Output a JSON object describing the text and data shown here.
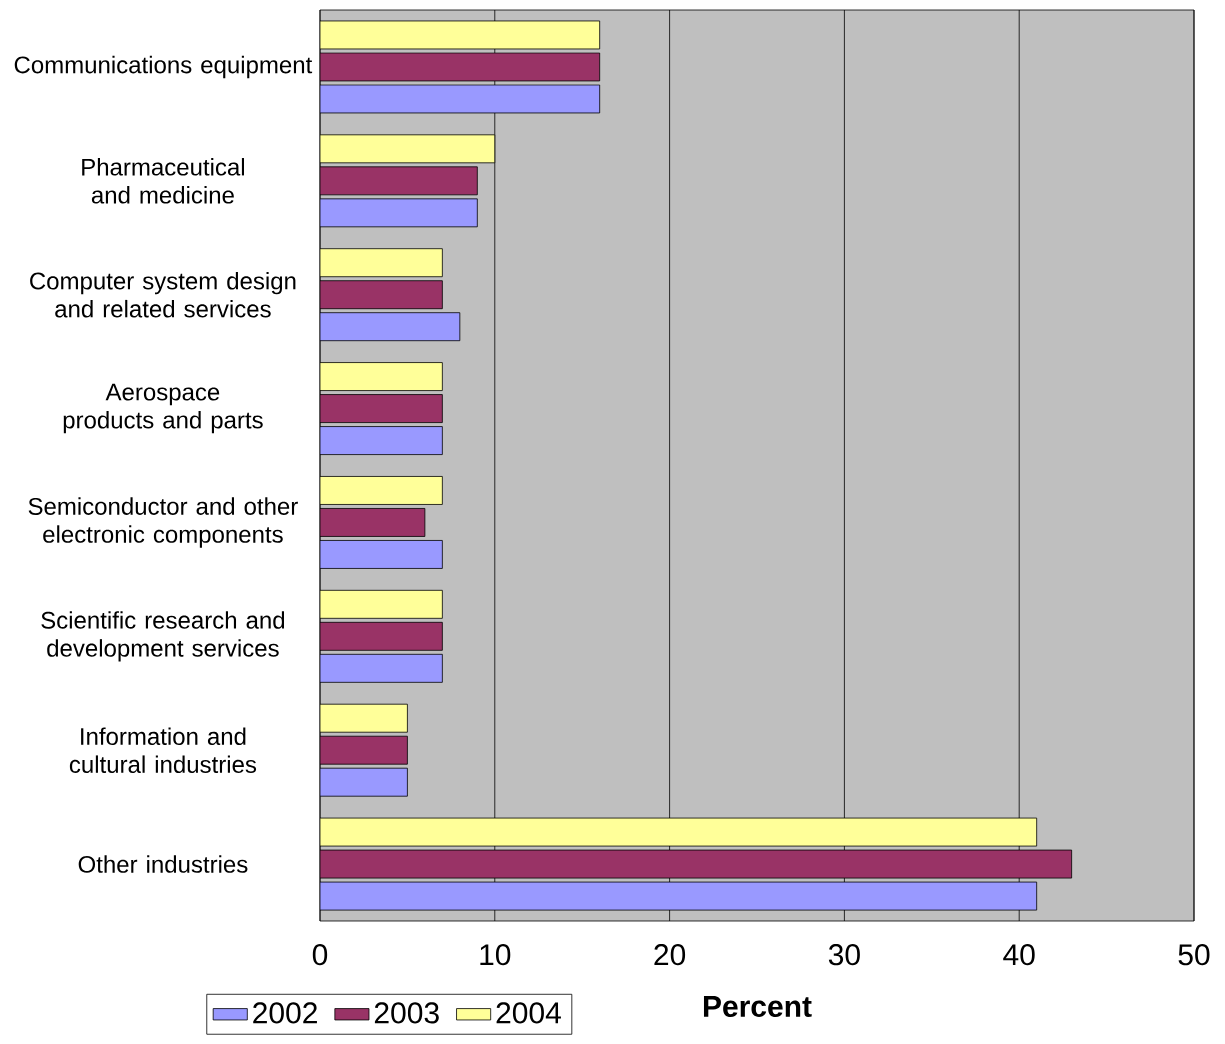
{
  "chart_data": {
    "type": "bar",
    "orientation": "horizontal",
    "categories": [
      "Communications equipment",
      "Pharmaceutical and medicine",
      "Computer system design and related services",
      "Aerospace products and parts",
      "Semiconductor and other electronic components",
      "Scientific research and development services",
      "Information and cultural industries",
      "Other industries"
    ],
    "series": [
      {
        "name": "2002",
        "color": "#9999ff",
        "values": [
          16,
          9,
          8,
          7,
          7,
          7,
          5,
          41
        ]
      },
      {
        "name": "2003",
        "color": "#993366",
        "values": [
          16,
          9,
          7,
          7,
          6,
          7,
          5,
          43
        ]
      },
      {
        "name": "2004",
        "color": "#ffff99",
        "values": [
          16,
          10,
          7,
          7,
          7,
          7,
          5,
          41
        ]
      }
    ],
    "xlabel": "Percent",
    "xlim": [
      0,
      50
    ],
    "xticks": [
      0,
      10,
      20,
      30,
      40,
      50
    ],
    "grid": "x",
    "legend": "bottom left"
  }
}
